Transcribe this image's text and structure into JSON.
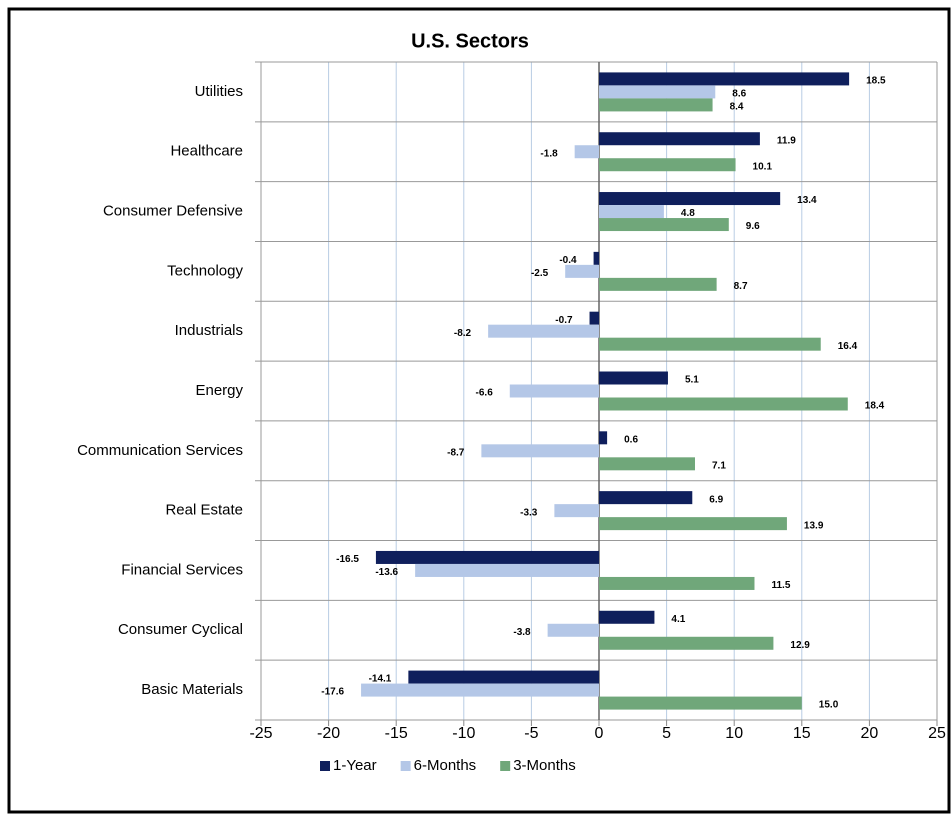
{
  "chart_data": {
    "type": "hbar",
    "title": "U.S. Sectors",
    "categories": [
      "Utilities",
      "Healthcare",
      "Consumer Defensive",
      "Technology",
      "Industrials",
      "Energy",
      "Communication Services",
      "Real Estate",
      "Financial Services",
      "Consumer Cyclical",
      "Basic Materials"
    ],
    "series": [
      {
        "name": "1-Year",
        "color": "#0f1f5c",
        "values": [
          18.5,
          11.9,
          13.4,
          -0.4,
          -0.7,
          5.1,
          0.6,
          6.9,
          -16.5,
          4.1,
          -14.1
        ],
        "value_labels": [
          "18.5",
          "11.9",
          "13.4",
          "-0.4",
          "-0.7",
          "5.1",
          "0.6",
          "6.9",
          "-16.5",
          "4.1",
          "-14.1"
        ]
      },
      {
        "name": "6-Months",
        "color": "#b4c7e7",
        "values": [
          8.6,
          -1.8,
          4.8,
          -2.5,
          -8.2,
          -6.6,
          -8.7,
          -3.3,
          -13.6,
          -3.8,
          -17.6
        ],
        "value_labels": [
          "8.6",
          "-1.8",
          "4.8",
          "-2.5",
          "-8.2",
          "-6.6",
          "-8.7",
          "-3.3",
          "-13.6",
          "-3.8",
          "-17.6"
        ]
      },
      {
        "name": "3-Months",
        "color": "#70a77a",
        "values": [
          8.4,
          10.1,
          9.6,
          8.7,
          16.4,
          18.4,
          7.1,
          13.9,
          11.5,
          12.9,
          15.0
        ],
        "value_labels": [
          "8.4",
          "10.1",
          "9.6",
          "8.7",
          "16.4",
          "18.4",
          "7.1",
          "13.9",
          "11.5",
          "12.9",
          "15.0"
        ]
      }
    ],
    "xlim": [
      -25,
      25
    ],
    "xticks": [
      -25,
      -20,
      -15,
      -10,
      -5,
      0,
      5,
      10,
      15,
      20,
      25
    ],
    "grid": true,
    "legend": "bottom"
  }
}
